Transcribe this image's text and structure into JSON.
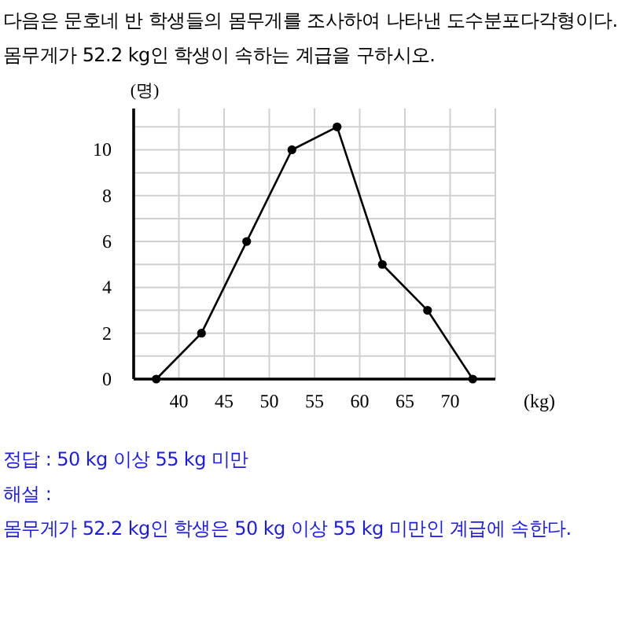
{
  "chart_data": {
    "type": "line",
    "title": "다음은 문호네 반 학생들의 몸무게를 조사하여 나타낸 도수분포다각형이다. 몸무게가 52.2 kg인 학생이 속하는 계급을 구하시오.",
    "xlabel": "(kg)",
    "ylabel": "(명)",
    "x": [
      37.5,
      42.5,
      47.5,
      52.5,
      57.5,
      62.5,
      67.5,
      72.5
    ],
    "series": [
      {
        "color": "#000000",
        "values": [
          0,
          2,
          6,
          10,
          11,
          5,
          3,
          0
        ]
      }
    ],
    "xlim": [
      35,
      75
    ],
    "xticks": [
      40,
      45,
      50,
      55,
      60,
      65,
      70,
      {
        "value": 75,
        "label": null
      }
    ],
    "ylim": [
      0,
      11.8
    ],
    "yticks": [
      0,
      {
        "value": 1,
        "label": null
      },
      2,
      {
        "value": 3,
        "label": null
      },
      4,
      {
        "value": 5,
        "label": null
      },
      6,
      {
        "value": 7,
        "label": null
      },
      8,
      {
        "value": 9,
        "label": null
      },
      10,
      {
        "value": 11,
        "label": null
      }
    ],
    "grid": true,
    "marker": "circle",
    "line_style": "solid",
    "annotations": [
      "정답 : 50 kg 이상 55 kg 미만",
      "해설 :",
      "몸무게가 52.2 kg인 학생은 50 kg 이상 55 kg 미만인 계급에 속한다."
    ]
  }
}
